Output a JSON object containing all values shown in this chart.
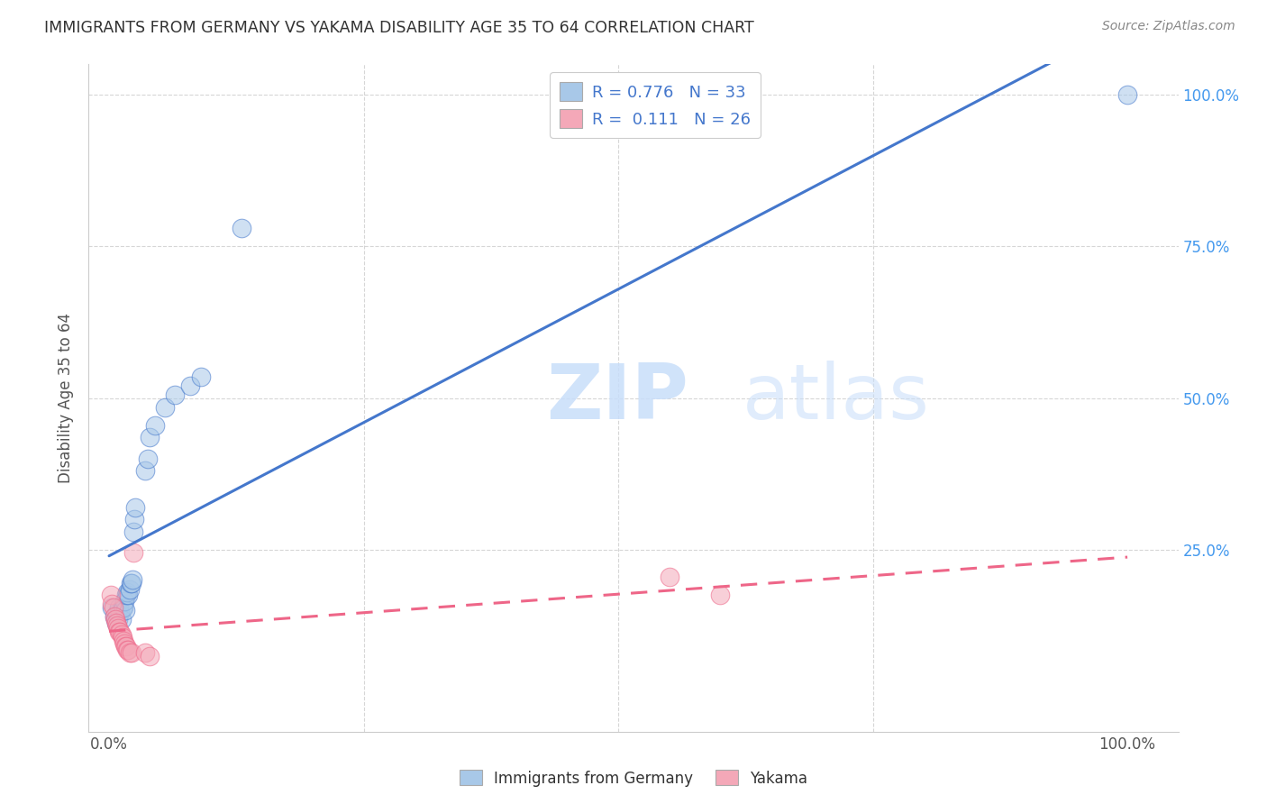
{
  "title": "IMMIGRANTS FROM GERMANY VS YAKAMA DISABILITY AGE 35 TO 64 CORRELATION CHART",
  "source": "Source: ZipAtlas.com",
  "ylabel": "Disability Age 35 to 64",
  "watermark": "ZIPatlas",
  "legend_label1": "Immigrants from Germany",
  "legend_label2": "Yakama",
  "blue_color": "#A8C8E8",
  "pink_color": "#F4A8B8",
  "blue_line_color": "#4477CC",
  "pink_line_color": "#EE6688",
  "blue_scatter": [
    [
      0.003,
      0.155
    ],
    [
      0.005,
      0.14
    ],
    [
      0.006,
      0.135
    ],
    [
      0.007,
      0.13
    ],
    [
      0.008,
      0.145
    ],
    [
      0.009,
      0.135
    ],
    [
      0.01,
      0.155
    ],
    [
      0.011,
      0.145
    ],
    [
      0.012,
      0.135
    ],
    [
      0.013,
      0.155
    ],
    [
      0.014,
      0.155
    ],
    [
      0.015,
      0.165
    ],
    [
      0.016,
      0.15
    ],
    [
      0.017,
      0.175
    ],
    [
      0.018,
      0.18
    ],
    [
      0.019,
      0.175
    ],
    [
      0.02,
      0.185
    ],
    [
      0.021,
      0.195
    ],
    [
      0.022,
      0.195
    ],
    [
      0.023,
      0.2
    ],
    [
      0.024,
      0.28
    ],
    [
      0.025,
      0.3
    ],
    [
      0.026,
      0.32
    ],
    [
      0.035,
      0.38
    ],
    [
      0.038,
      0.4
    ],
    [
      0.04,
      0.435
    ],
    [
      0.045,
      0.455
    ],
    [
      0.055,
      0.485
    ],
    [
      0.065,
      0.505
    ],
    [
      0.08,
      0.52
    ],
    [
      0.09,
      0.535
    ],
    [
      0.13,
      0.78
    ],
    [
      1.0,
      1.0
    ]
  ],
  "pink_scatter": [
    [
      0.002,
      0.175
    ],
    [
      0.003,
      0.16
    ],
    [
      0.004,
      0.155
    ],
    [
      0.005,
      0.14
    ],
    [
      0.006,
      0.135
    ],
    [
      0.007,
      0.13
    ],
    [
      0.008,
      0.125
    ],
    [
      0.009,
      0.12
    ],
    [
      0.01,
      0.115
    ],
    [
      0.011,
      0.115
    ],
    [
      0.012,
      0.11
    ],
    [
      0.013,
      0.105
    ],
    [
      0.014,
      0.1
    ],
    [
      0.015,
      0.095
    ],
    [
      0.016,
      0.09
    ],
    [
      0.017,
      0.09
    ],
    [
      0.018,
      0.085
    ],
    [
      0.019,
      0.085
    ],
    [
      0.02,
      0.08
    ],
    [
      0.022,
      0.08
    ],
    [
      0.024,
      0.245
    ],
    [
      0.035,
      0.08
    ],
    [
      0.04,
      0.075
    ],
    [
      0.55,
      0.205
    ],
    [
      0.6,
      0.175
    ]
  ],
  "xlim": [
    -0.02,
    1.05
  ],
  "ylim": [
    -0.05,
    1.05
  ],
  "grid_color": "#CCCCCC",
  "bg_color": "#FFFFFF",
  "title_color": "#333333",
  "axis_label_color": "#555555",
  "r_n_color": "#4477CC",
  "right_axis_color": "#4499EE"
}
